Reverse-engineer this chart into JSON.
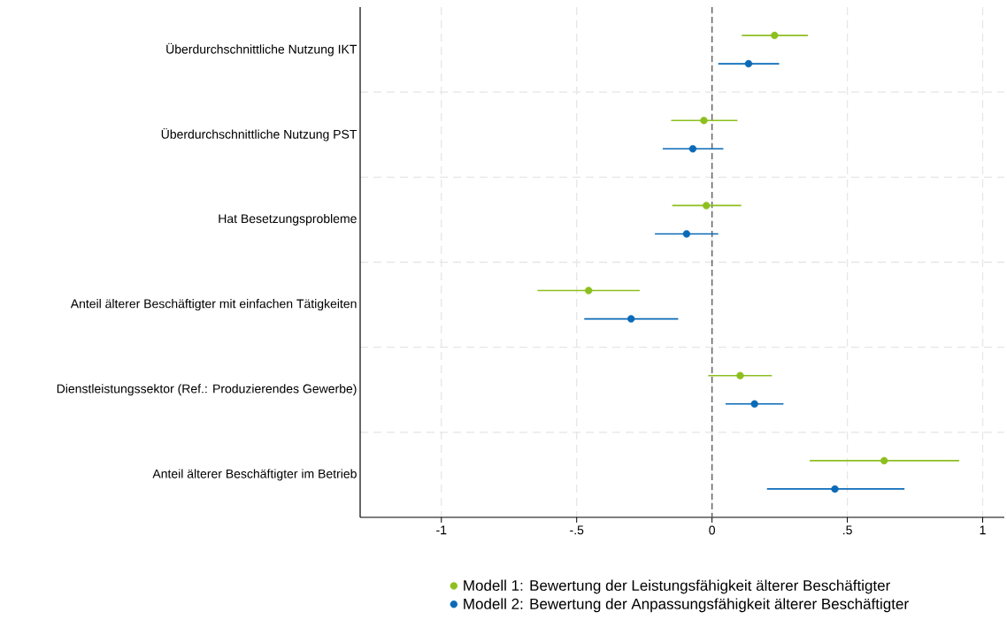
{
  "chart_data": {
    "type": "scatter",
    "orientation": "horizontal",
    "categories": [
      "Überdurchschnittliche Nutzung IKT",
      "Überdurchschnittliche Nutzung PST",
      "Hat Besetzungsprobleme",
      "Anteil älterer Beschäftigter mit einfachen Tätigkeiten",
      "Dienstleistungssektor (Ref.: Produzierendes Gewerbe)",
      "Anteil älterer Beschäftigter im Betrieb"
    ],
    "series": [
      {
        "name": "Modell 1: Bewertung der Leistungsfähigkeit älterer Beschäftigter",
        "color": "#8dbf1f",
        "values": [
          0.231,
          -0.03,
          -0.021,
          -0.456,
          0.104,
          0.636
        ],
        "errors": [
          [
            0.11,
            0.354
          ],
          [
            -0.151,
            0.094
          ],
          [
            -0.147,
            0.108
          ],
          [
            -0.645,
            -0.267
          ],
          [
            -0.014,
            0.221
          ],
          [
            0.361,
            0.913
          ]
        ]
      },
      {
        "name": "Modell 2: Bewertung der Anpassungsfähigkeit älterer Beschäftigter",
        "color": "#0a6ab7",
        "values": [
          0.135,
          -0.071,
          -0.094,
          -0.299,
          0.157,
          0.454
        ],
        "errors": [
          [
            0.023,
            0.248
          ],
          [
            -0.182,
            0.042
          ],
          [
            -0.211,
            0.023
          ],
          [
            -0.472,
            -0.125
          ],
          [
            0.05,
            0.264
          ],
          [
            0.203,
            0.711
          ]
        ]
      }
    ],
    "xlim": [
      -1.3,
      1.08
    ],
    "xticks": [
      {
        "value": -1,
        "label": "-1"
      },
      {
        "value": -0.5,
        "label": "-.5"
      },
      {
        "value": 0,
        "label": "0"
      },
      {
        "value": 0.5,
        "label": ".5"
      },
      {
        "value": 1,
        "label": "1"
      }
    ],
    "ref_lines": [
      {
        "axis": "x",
        "value": 0,
        "color": "#666666",
        "line_style": "dashed"
      }
    ],
    "grid": true,
    "legend": "bottom"
  }
}
